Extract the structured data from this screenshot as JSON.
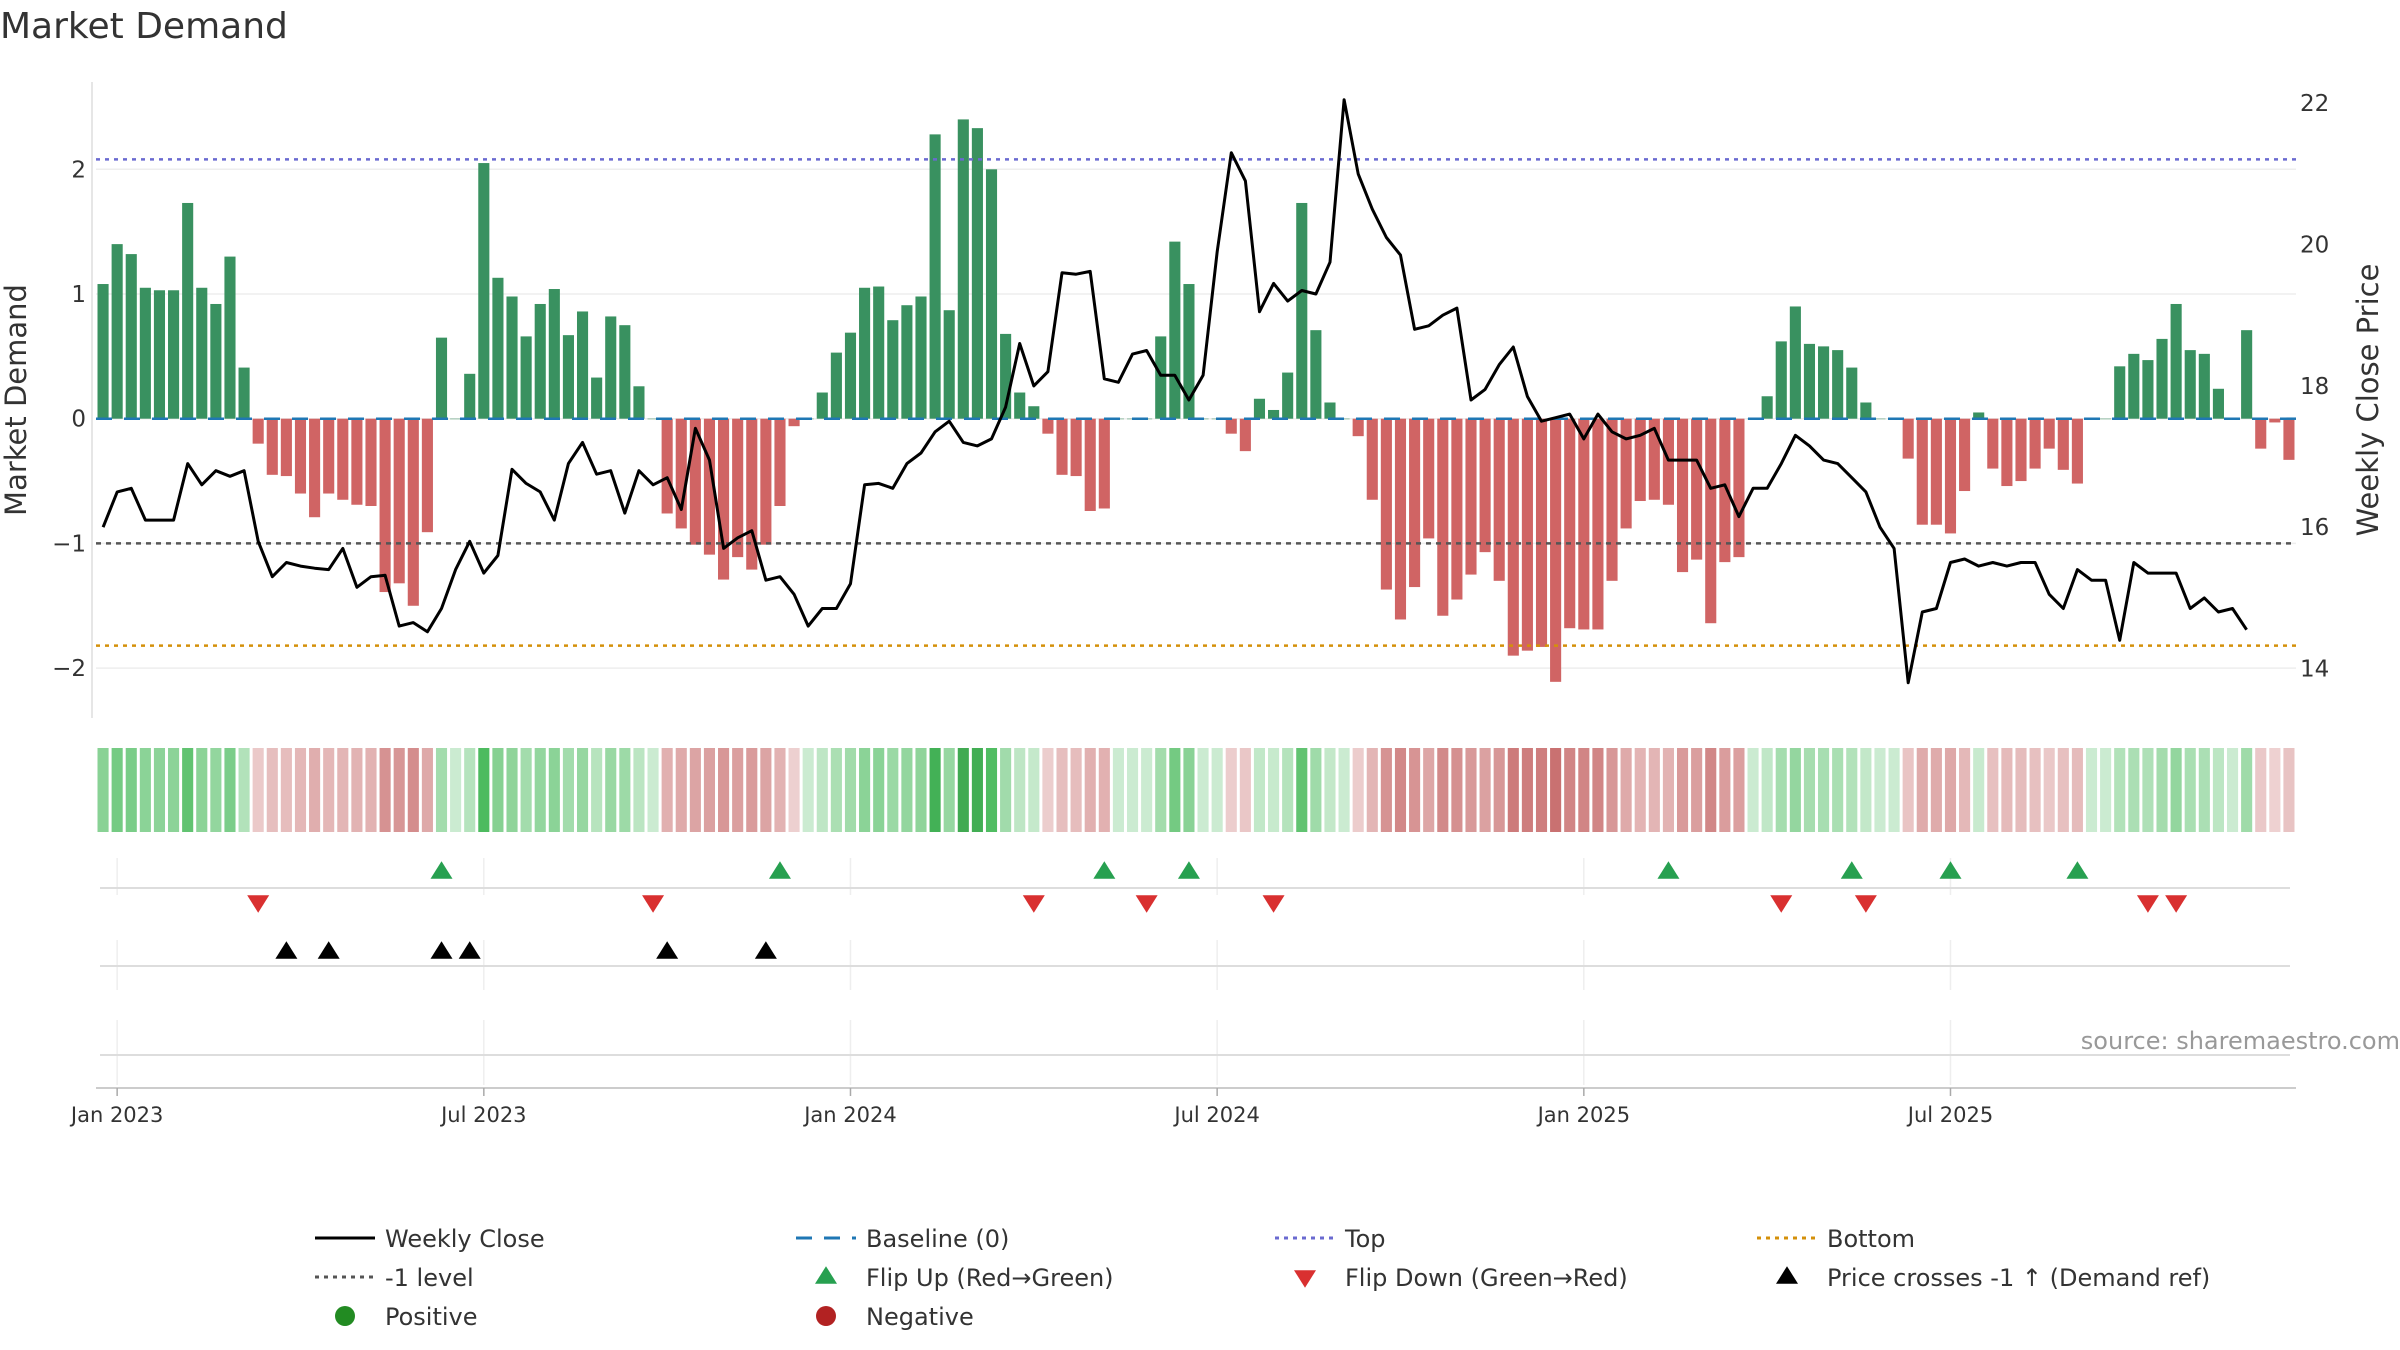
{
  "chart_data": {
    "type": "bar",
    "title": "Market Demand",
    "ylabel_left": "Market Demand",
    "ylabel_right": "Weekly Close Price",
    "ylim_left": [
      -2.4,
      2.7
    ],
    "ylim_right": [
      13.3,
      22.3
    ],
    "yticks_left": [
      -2,
      -1,
      0,
      1,
      2
    ],
    "yticks_left_labels": [
      "−2",
      "−1",
      "0",
      "1",
      "2"
    ],
    "yticks_right": [
      14,
      16,
      18,
      20,
      22
    ],
    "yticks_right_labels": [
      "14",
      "16",
      "18",
      "20",
      "22"
    ],
    "xticks": [
      "Jan 2023",
      "Jul 2023",
      "Jan 2024",
      "Jul 2024",
      "Jan 2025",
      "Jul 2025"
    ],
    "xtick_week_index": [
      1.5,
      27.5,
      53.5,
      79.5,
      105.5,
      131.5
    ],
    "top_level": 2.08,
    "bottom_level": -1.82,
    "minus_one_level": -1,
    "baseline": 0,
    "demand": [
      1.08,
      1.4,
      1.32,
      1.05,
      1.03,
      1.03,
      1.73,
      1.05,
      0.92,
      1.3,
      0.41,
      -0.2,
      -0.45,
      -0.46,
      -0.6,
      -0.79,
      -0.6,
      -0.65,
      -0.69,
      -0.7,
      -1.39,
      -1.32,
      -1.5,
      -0.91,
      0.65,
      0.0,
      0.36,
      2.05,
      1.13,
      0.98,
      0.66,
      0.92,
      1.04,
      0.67,
      0.86,
      0.33,
      0.82,
      0.75,
      0.26,
      0.0,
      -0.76,
      -0.88,
      -1.01,
      -1.09,
      -1.29,
      -1.11,
      -1.21,
      -1.01,
      -0.7,
      -0.06,
      0.0,
      0.21,
      0.53,
      0.69,
      1.05,
      1.06,
      0.79,
      0.91,
      0.98,
      2.28,
      0.87,
      2.4,
      2.33,
      2.0,
      0.68,
      0.21,
      0.1,
      -0.12,
      -0.45,
      -0.46,
      -0.74,
      -0.72,
      0.0,
      0.0,
      0.0,
      0.66,
      1.42,
      1.08,
      0.0,
      0.0,
      -0.12,
      -0.26,
      0.16,
      0.07,
      0.37,
      1.73,
      0.71,
      0.13,
      0.0,
      -0.14,
      -0.65,
      -1.37,
      -1.61,
      -1.35,
      -0.96,
      -1.58,
      -1.45,
      -1.25,
      -1.07,
      -1.3,
      -1.9,
      -1.86,
      -1.83,
      -2.11,
      -1.68,
      -1.69,
      -1.69,
      -1.3,
      -0.88,
      -0.66,
      -0.65,
      -0.69,
      -1.23,
      -1.13,
      -1.64,
      -1.15,
      -1.11,
      0.0,
      0.18,
      0.62,
      0.9,
      0.6,
      0.58,
      0.55,
      0.41,
      0.13,
      0.0,
      0.0,
      -0.32,
      -0.85,
      -0.85,
      -0.92,
      -0.58,
      0.05,
      -0.4,
      -0.54,
      -0.5,
      -0.4,
      -0.24,
      -0.41,
      -0.52,
      0.0,
      0.0,
      0.42,
      0.52,
      0.47,
      0.64,
      0.92,
      0.55,
      0.52,
      0.24,
      0.0,
      0.71,
      -0.24,
      -0.03,
      -0.33
    ],
    "weekly_close": [
      16,
      16.5,
      16.55,
      16.1,
      16.1,
      16.1,
      16.9,
      16.6,
      16.8,
      16.72,
      16.8,
      15.8,
      15.3,
      15.5,
      15.45,
      15.42,
      15.4,
      15.7,
      15.15,
      15.3,
      15.32,
      14.6,
      14.65,
      14.52,
      14.85,
      15.4,
      15.8,
      15.35,
      15.6,
      16.82,
      16.62,
      16.5,
      16.1,
      16.9,
      17.2,
      16.75,
      16.8,
      16.2,
      16.8,
      16.6,
      16.7,
      16.25,
      17.4,
      16.95,
      15.7,
      15.85,
      15.95,
      15.25,
      15.3,
      15.05,
      14.6,
      14.85,
      14.85,
      15.2,
      16.6,
      16.62,
      16.55,
      16.9,
      17.05,
      17.35,
      17.5,
      17.2,
      17.15,
      17.25,
      17.7,
      18.6,
      18.0,
      18.2,
      19.6,
      19.58,
      19.62,
      18.1,
      18.05,
      18.45,
      18.5,
      18.15,
      18.15,
      17.8,
      18.15,
      19.9,
      21.3,
      20.9,
      19.05,
      19.45,
      19.2,
      19.35,
      19.3,
      19.75,
      22.05,
      21.0,
      20.5,
      20.1,
      19.85,
      18.8,
      18.85,
      19.0,
      19.1,
      17.8,
      17.95,
      18.3,
      18.55,
      17.85,
      17.5,
      17.55,
      17.6,
      17.25,
      17.6,
      17.35,
      17.25,
      17.3,
      17.4,
      16.95,
      16.95,
      16.95,
      16.55,
      16.6,
      16.15,
      16.55,
      16.55,
      16.9,
      17.3,
      17.15,
      16.95,
      16.9,
      16.7,
      16.5,
      16.0,
      15.7,
      13.8,
      14.8,
      14.85,
      15.5,
      15.55,
      15.45,
      15.5,
      15.45,
      15.5,
      15.5,
      15.05,
      14.85,
      15.4,
      15.25,
      15.25,
      14.4,
      15.5,
      15.35,
      15.35,
      15.35,
      14.85,
      15.0,
      14.8,
      14.85,
      14.55
    ],
    "price_y_scale_note": "weekly_close plotted on right axis (Weekly Close Price)",
    "flip_up_weeks": [
      24,
      48,
      71,
      77,
      111,
      124,
      131,
      140
    ],
    "flip_down_weeks": [
      11,
      39,
      66,
      74,
      83,
      119,
      125,
      145,
      147
    ],
    "price_cross_weeks": [
      13,
      16,
      24,
      26,
      40,
      47
    ],
    "source": "source: sharemaestro.com",
    "legend": [
      {
        "label": "Weekly Close",
        "marker": "line-solid",
        "color": "#000000"
      },
      {
        "label": "Baseline (0)",
        "marker": "line-dash",
        "color": "#1f77b4"
      },
      {
        "label": "Top",
        "marker": "line-dot",
        "color": "#6a6ad0"
      },
      {
        "label": "Bottom",
        "marker": "line-dot",
        "color": "#d4900a"
      },
      {
        "label": "-1 level",
        "marker": "line-dot",
        "color": "#555555"
      },
      {
        "label": "Flip Up (Red→Green)",
        "marker": "triangle-up",
        "color": "#27a050"
      },
      {
        "label": "Flip Down (Green→Red)",
        "marker": "triangle-down",
        "color": "#d93030"
      },
      {
        "label": "Price crosses -1 ↑ (Demand ref)",
        "marker": "triangle-up",
        "color": "#000000"
      },
      {
        "label": "Positive",
        "marker": "circle",
        "color": "#228b22"
      },
      {
        "label": "Negative",
        "marker": "circle",
        "color": "#b22222"
      }
    ]
  },
  "colors": {
    "positive_bar": "#2e8b57",
    "negative_bar": "#cd5c5c",
    "price_line": "#000000",
    "flip_up": "#27a050",
    "flip_down": "#d93030",
    "cross": "#000000"
  }
}
